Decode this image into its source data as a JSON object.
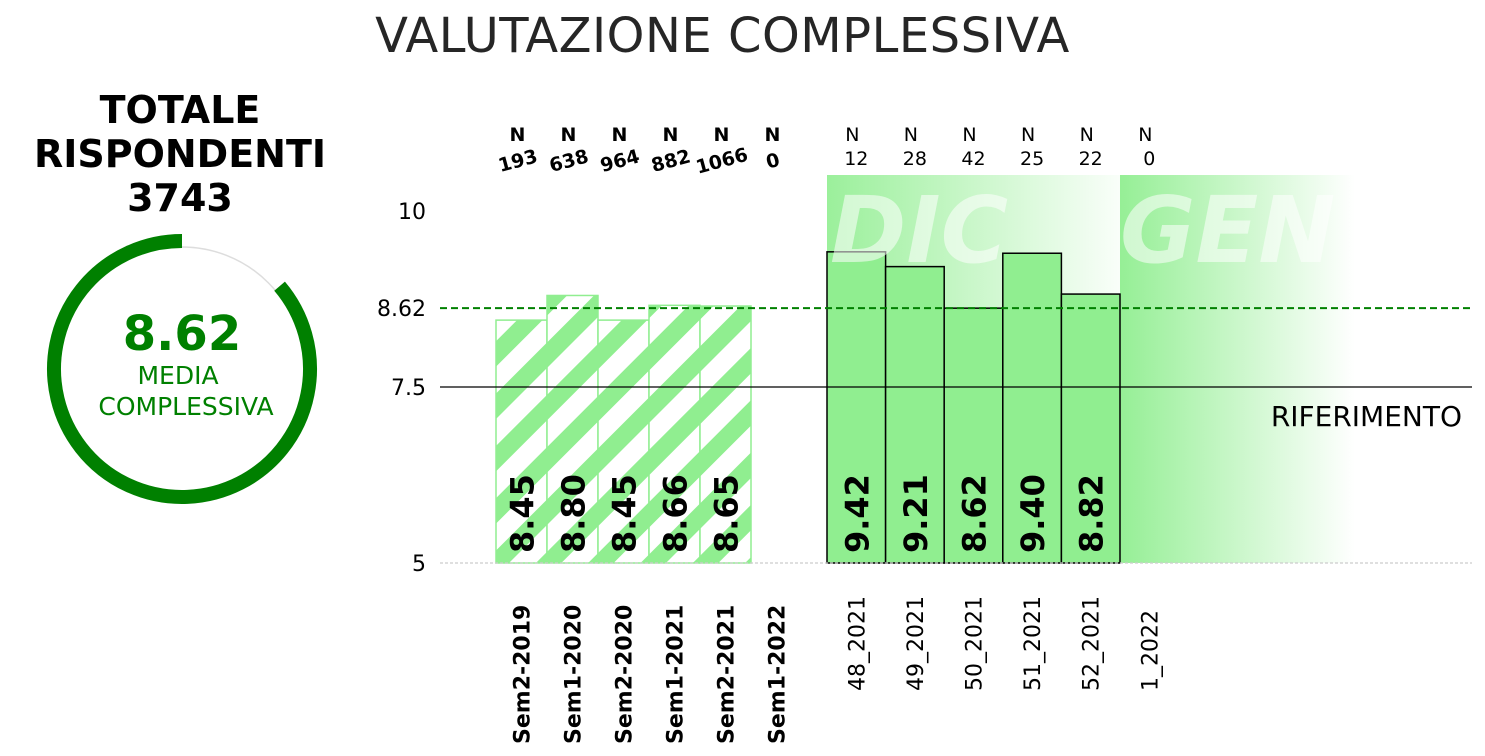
{
  "title": "VALUTAZIONE COMPLESSIVA",
  "summary": {
    "total_line1": "TOTALE",
    "total_line2": "RISPONDENTI",
    "total_value": "3743",
    "average_value": "8.62",
    "average_label_line1": "MEDIA",
    "average_label_line2": "COMPLESSIVA",
    "average_fraction": 0.862
  },
  "colors": {
    "bar_fill": "#90ee90",
    "accent": "#008000",
    "reference_line": "#000000",
    "grid_baseline": "#cccccc"
  },
  "overlay_words": [
    "DIC",
    "GEN"
  ],
  "chart_data": {
    "type": "bar",
    "ylim": [
      5,
      10.5
    ],
    "yticks": [
      {
        "value": 5,
        "label": "5"
      },
      {
        "value": 7.5,
        "label": "7.5"
      },
      {
        "value": 8.62,
        "label": "8.62"
      },
      {
        "value": 10,
        "label": "10"
      }
    ],
    "reference": {
      "value": 7.5,
      "label": "RIFERIMENTO"
    },
    "average_line": {
      "value": 8.62
    },
    "groups": [
      {
        "name": "semester",
        "style": "hatched",
        "categories": [
          "Sem2-2019",
          "Sem1-2020",
          "Sem2-2020",
          "Sem1-2021",
          "Sem2-2021",
          "Sem1-2022"
        ],
        "values": [
          8.45,
          8.8,
          8.45,
          8.66,
          8.65,
          null
        ],
        "value_labels": [
          "8.45",
          "8.80",
          "8.45",
          "8.66",
          "8.65",
          ""
        ],
        "n_counts": [
          "193",
          "638",
          "964",
          "882",
          "1066",
          "0"
        ]
      },
      {
        "name": "week",
        "style": "solid",
        "categories": [
          "48_2021",
          "49_2021",
          "50_2021",
          "51_2021",
          "52_2021",
          "1_2022"
        ],
        "values": [
          9.42,
          9.21,
          8.62,
          9.4,
          8.82,
          null
        ],
        "value_labels": [
          "9.42",
          "9.21",
          "8.62",
          "9.40",
          "8.82",
          ""
        ],
        "n_counts": [
          "12",
          "28",
          "42",
          "25",
          "22",
          "0"
        ]
      }
    ],
    "n_label": "N"
  }
}
